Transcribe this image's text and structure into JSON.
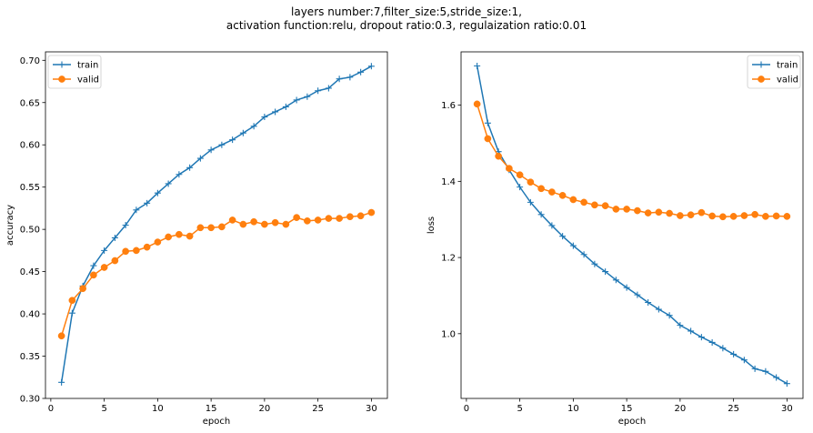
{
  "figure": {
    "title_line1": "layers number:7,filter_size:5,stride_size:1,",
    "title_line2": "activation function:relu, dropout ratio:0.3, regulaization ratio:0.01"
  },
  "colors": {
    "train": "#1f77b4",
    "valid": "#ff7f0e"
  },
  "chart_data": [
    {
      "type": "line",
      "xlabel": "epoch",
      "ylabel": "accuracy",
      "xlim": [
        -0.5,
        31.5
      ],
      "ylim": [
        0.3,
        0.71
      ],
      "xticks": [
        0,
        5,
        10,
        15,
        20,
        25,
        30
      ],
      "yticks": [
        0.3,
        0.35,
        0.4,
        0.45,
        0.5,
        0.55,
        0.6,
        0.65,
        0.7
      ],
      "ytick_labels": [
        "0.30",
        "0.35",
        "0.40",
        "0.45",
        "0.50",
        "0.55",
        "0.60",
        "0.65",
        "0.70"
      ],
      "legend": "top-left",
      "grid": false,
      "x": [
        1,
        2,
        3,
        4,
        5,
        6,
        7,
        8,
        9,
        10,
        11,
        12,
        13,
        14,
        15,
        16,
        17,
        18,
        19,
        20,
        21,
        22,
        23,
        24,
        25,
        26,
        27,
        28,
        29,
        30
      ],
      "series": [
        {
          "name": "train",
          "marker": "plus",
          "values": [
            0.319,
            0.401,
            0.433,
            0.457,
            0.475,
            0.49,
            0.505,
            0.523,
            0.531,
            0.543,
            0.554,
            0.565,
            0.573,
            0.584,
            0.594,
            0.6,
            0.606,
            0.614,
            0.622,
            0.633,
            0.639,
            0.645,
            0.653,
            0.657,
            0.664,
            0.667,
            0.678,
            0.68,
            0.686,
            0.693
          ]
        },
        {
          "name": "valid",
          "marker": "circle",
          "values": [
            0.374,
            0.416,
            0.43,
            0.446,
            0.455,
            0.463,
            0.474,
            0.475,
            0.479,
            0.485,
            0.491,
            0.494,
            0.492,
            0.502,
            0.502,
            0.503,
            0.511,
            0.506,
            0.509,
            0.506,
            0.508,
            0.506,
            0.514,
            0.51,
            0.511,
            0.513,
            0.513,
            0.515,
            0.516,
            0.52
          ]
        }
      ]
    },
    {
      "type": "line",
      "xlabel": "epoch",
      "ylabel": "loss",
      "xlim": [
        -0.5,
        31.5
      ],
      "ylim": [
        0.83,
        1.74
      ],
      "xticks": [
        0,
        5,
        10,
        15,
        20,
        25,
        30
      ],
      "yticks": [
        1.0,
        1.2,
        1.4,
        1.6
      ],
      "ytick_labels": [
        "1.0",
        "1.2",
        "1.4",
        "1.6"
      ],
      "legend": "top-right",
      "grid": false,
      "x": [
        1,
        2,
        3,
        4,
        5,
        6,
        7,
        8,
        9,
        10,
        11,
        12,
        13,
        14,
        15,
        16,
        17,
        18,
        19,
        20,
        21,
        22,
        23,
        24,
        25,
        26,
        27,
        28,
        29,
        30
      ],
      "series": [
        {
          "name": "train",
          "marker": "plus",
          "values": [
            1.703,
            1.553,
            1.478,
            1.43,
            1.385,
            1.345,
            1.313,
            1.284,
            1.256,
            1.231,
            1.208,
            1.183,
            1.163,
            1.141,
            1.121,
            1.102,
            1.082,
            1.064,
            1.048,
            1.022,
            1.007,
            0.991,
            0.977,
            0.962,
            0.946,
            0.931,
            0.908,
            0.901,
            0.885,
            0.869
          ]
        },
        {
          "name": "valid",
          "marker": "circle",
          "values": [
            1.603,
            1.512,
            1.466,
            1.434,
            1.417,
            1.398,
            1.381,
            1.372,
            1.363,
            1.352,
            1.345,
            1.338,
            1.336,
            1.327,
            1.327,
            1.323,
            1.317,
            1.319,
            1.316,
            1.31,
            1.312,
            1.318,
            1.309,
            1.307,
            1.308,
            1.31,
            1.313,
            1.308,
            1.309,
            1.308
          ]
        }
      ]
    }
  ]
}
